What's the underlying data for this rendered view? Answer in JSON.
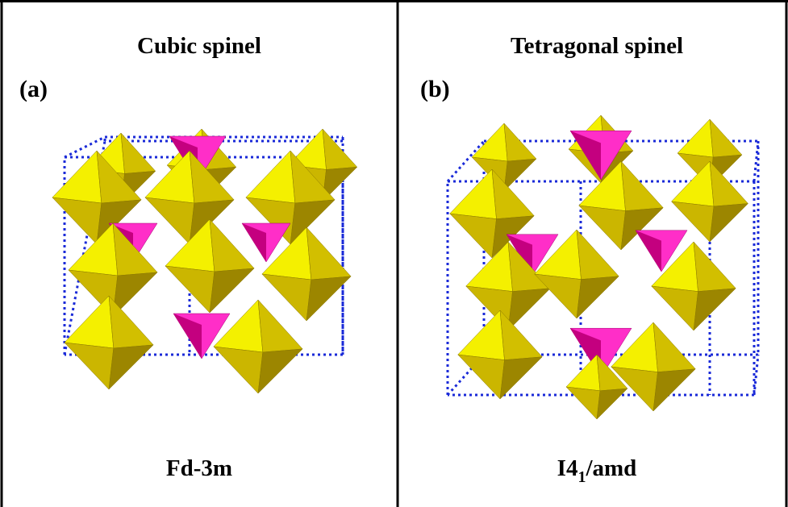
{
  "panels": [
    {
      "title": "Cubic spinel",
      "label": "(a)",
      "space_group": [
        "Fd-3m"
      ]
    },
    {
      "title": "Tetragonal spinel",
      "label": "(b)",
      "space_group": [
        "I4",
        "1",
        "/amd"
      ]
    }
  ]
}
